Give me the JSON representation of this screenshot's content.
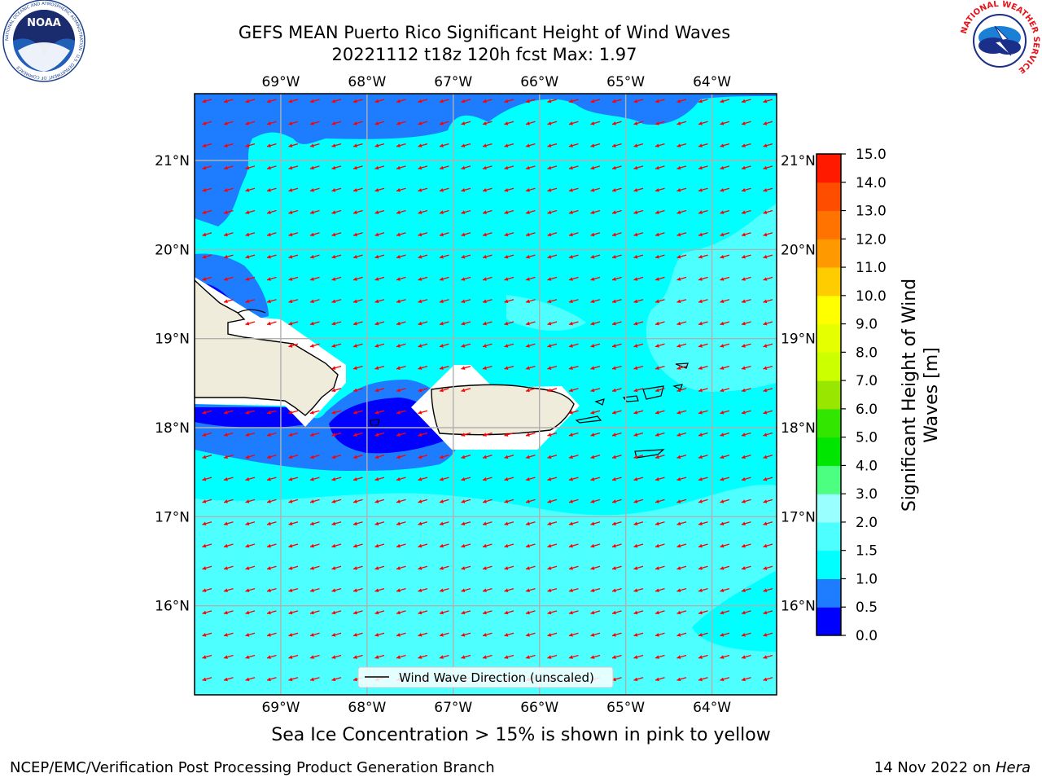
{
  "header": {
    "title_line1": "GEFS MEAN Puerto Rico Significant Height of Wind Waves",
    "title_line2": "20221112 t18z 120h fcst   Max: 1.97"
  },
  "logos": {
    "noaa_text": "NOAA",
    "noaa_ring_text": "NATIONAL OCEANIC AND ATMOSPHERIC ADMINISTRATION · U.S. DEPARTMENT OF COMMERCE",
    "nws_ring_text": "NATIONAL WEATHER SERVICE"
  },
  "map": {
    "lon_labels": [
      "69°W",
      "68°W",
      "67°W",
      "66°W",
      "65°W",
      "64°W"
    ],
    "lat_labels": [
      "21°N",
      "20°N",
      "19°N",
      "18°N",
      "17°N",
      "16°N"
    ],
    "lon_values": [
      -69,
      -68,
      -67,
      -66,
      -65,
      -64
    ],
    "lat_values": [
      21,
      20,
      19,
      18,
      17,
      16
    ],
    "extent": {
      "lon_min": -70,
      "lon_max": -63.25,
      "lat_min": 15,
      "lat_max": 21.75
    },
    "legend_label": "Wind Wave Direction (unscaled)",
    "arrow_color": "#ff0000",
    "land_color": "#efecdc"
  },
  "colorbar": {
    "title": "Significant Height of Wind Waves [m]",
    "title_line1": "Significant Height of Wind",
    "title_line2": "Waves [m]",
    "tick_labels": [
      "0.0",
      "0.5",
      "1.0",
      "1.5",
      "2.0",
      "3.0",
      "4.0",
      "5.0",
      "6.0",
      "7.0",
      "8.0",
      "9.0",
      "10.0",
      "11.0",
      "12.0",
      "13.0",
      "14.0",
      "15.0"
    ],
    "colors": [
      "#0000ff",
      "#1e7dff",
      "#00ffff",
      "#4dffff",
      "#99ffff",
      "#4dff80",
      "#00e600",
      "#33e600",
      "#99e600",
      "#ccff00",
      "#e6ff00",
      "#ffff00",
      "#ffcc00",
      "#ff9900",
      "#ff7300",
      "#ff4d00",
      "#ff1a00"
    ]
  },
  "footer": {
    "sea_ice_note": "Sea Ice Concentration > 15% is shown in pink to yellow",
    "branch": "NCEP/EMC/Verification Post Processing Product Generation Branch",
    "date_text": "14 Nov 2022 on ",
    "machine": "Hera"
  }
}
